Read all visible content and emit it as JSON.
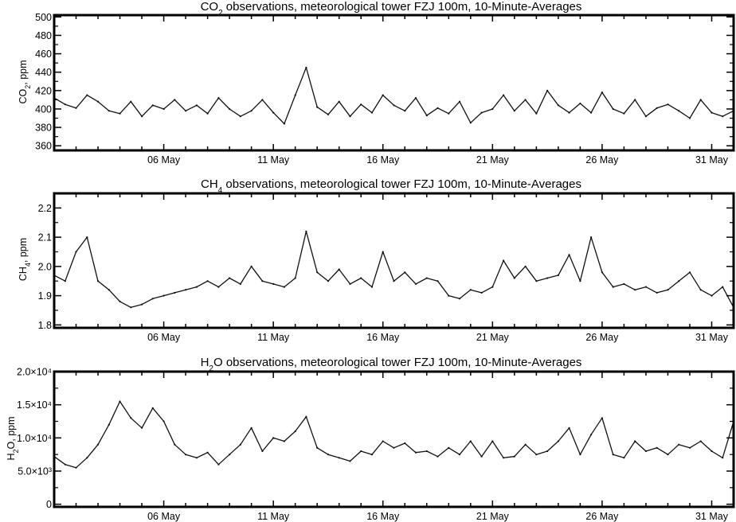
{
  "charts": [
    {
      "title_main": "CO",
      "title_sub": "2",
      "title_rest": " observations, meteorological tower FZJ 100m, 10-Minute-Averages",
      "ylabel_main": "CO",
      "ylabel_sub": "2",
      "ylabel_rest": ", ppm"
    },
    {
      "title_main": "CH",
      "title_sub": "4",
      "title_rest": " observations, meteorological tower FZJ 100m, 10-Minute-Averages",
      "ylabel_main": "CH",
      "ylabel_sub": "4",
      "ylabel_rest": ", ppm"
    },
    {
      "title_main": "H",
      "title_sub": "2",
      "title_rest": "O observations, meteorological tower FZJ 100m, 10-Minute-Averages",
      "ylabel_main": "H",
      "ylabel_sub": "2",
      "ylabel_rest": "O, ppm"
    }
  ],
  "chart_data": [
    {
      "type": "line",
      "title": "CO2 observations, meteorological tower FZJ 100m, 10-Minute-Averages",
      "ylabel": "CO2, ppm",
      "xlim": [
        1,
        32
      ],
      "ylim": [
        355,
        502
      ],
      "x_ticks": [
        6,
        11,
        16,
        21,
        26,
        31
      ],
      "x_tick_labels": [
        "06 May",
        "11 May",
        "16 May",
        "21 May",
        "26 May",
        "31 May"
      ],
      "y_ticks": [
        360,
        380,
        400,
        420,
        440,
        460,
        480,
        500
      ],
      "y_tick_labels": [
        "360",
        "380",
        "400",
        "420",
        "440",
        "460",
        "480",
        "500"
      ],
      "grid": false,
      "series_color": "#111111",
      "x": [
        1,
        1.5,
        2,
        2.5,
        3,
        3.5,
        4,
        4.5,
        5,
        5.5,
        6,
        6.5,
        7,
        7.5,
        8,
        8.5,
        9,
        9.5,
        10,
        10.5,
        11,
        11.5,
        12,
        12.5,
        13,
        13.5,
        14,
        14.5,
        15,
        15.5,
        16,
        16.5,
        17,
        17.5,
        18,
        18.5,
        19,
        19.5,
        20,
        20.5,
        21,
        21.5,
        22,
        22.5,
        23,
        23.5,
        24,
        24.5,
        25,
        25.5,
        26,
        26.5,
        27,
        27.5,
        28,
        28.5,
        29,
        29.5,
        30,
        30.5,
        31,
        31.5,
        32
      ],
      "y": [
        412,
        405,
        401,
        415,
        408,
        398,
        395,
        408,
        392,
        404,
        400,
        410,
        398,
        404,
        395,
        412,
        400,
        392,
        398,
        410,
        396,
        384,
        415,
        445,
        402,
        394,
        408,
        392,
        405,
        396,
        415,
        404,
        398,
        412,
        393,
        401,
        395,
        408,
        385,
        396,
        400,
        415,
        398,
        410,
        395,
        420,
        404,
        396,
        406,
        396,
        418,
        400,
        395,
        410,
        392,
        401,
        405,
        398,
        390,
        410,
        396,
        392,
        398
      ]
    },
    {
      "type": "line",
      "title": "CH4 observations, meteorological tower FZJ 100m, 10-Minute-Averages",
      "ylabel": "CH4, ppm",
      "xlim": [
        1,
        32
      ],
      "ylim": [
        1.79,
        2.25
      ],
      "x_ticks": [
        6,
        11,
        16,
        21,
        26,
        31
      ],
      "x_tick_labels": [
        "06 May",
        "11 May",
        "16 May",
        "21 May",
        "26 May",
        "31 May"
      ],
      "y_ticks": [
        1.8,
        1.9,
        2.0,
        2.1,
        2.2
      ],
      "y_tick_labels": [
        "1.8",
        "1.9",
        "2.0",
        "2.1",
        "2.2"
      ],
      "grid": false,
      "series_color": "#111111",
      "x": [
        1,
        1.5,
        2,
        2.5,
        3,
        3.5,
        4,
        4.5,
        5,
        5.5,
        6,
        6.5,
        7,
        7.5,
        8,
        8.5,
        9,
        9.5,
        10,
        10.5,
        11,
        11.5,
        12,
        12.5,
        13,
        13.5,
        14,
        14.5,
        15,
        15.5,
        16,
        16.5,
        17,
        17.5,
        18,
        18.5,
        19,
        19.5,
        20,
        20.5,
        21,
        21.5,
        22,
        22.5,
        23,
        23.5,
        24,
        24.5,
        25,
        25.5,
        26,
        26.5,
        27,
        27.5,
        28,
        28.5,
        29,
        29.5,
        30,
        30.5,
        31,
        31.5,
        32
      ],
      "y": [
        1.97,
        1.95,
        2.05,
        2.1,
        1.95,
        1.92,
        1.88,
        1.86,
        1.87,
        1.89,
        1.9,
        1.91,
        1.92,
        1.93,
        1.95,
        1.93,
        1.96,
        1.94,
        2.0,
        1.95,
        1.94,
        1.93,
        1.96,
        2.12,
        1.98,
        1.95,
        1.99,
        1.94,
        1.96,
        1.93,
        2.05,
        1.95,
        1.98,
        1.94,
        1.96,
        1.95,
        1.9,
        1.89,
        1.92,
        1.91,
        1.93,
        2.02,
        1.96,
        2.0,
        1.95,
        1.96,
        1.97,
        2.04,
        1.95,
        2.1,
        1.98,
        1.93,
        1.94,
        1.92,
        1.93,
        1.91,
        1.92,
        1.95,
        1.98,
        1.92,
        1.9,
        1.93,
        1.86
      ]
    },
    {
      "type": "line",
      "title": "H2O observations, meteorological tower FZJ 100m, 10-Minute-Averages",
      "ylabel": "H2O, ppm",
      "xlim": [
        1,
        32
      ],
      "ylim": [
        -400,
        20000
      ],
      "x_ticks": [
        6,
        11,
        16,
        21,
        26,
        31
      ],
      "x_tick_labels": [
        "06 May",
        "11 May",
        "16 May",
        "21 May",
        "26 May",
        "31 May"
      ],
      "y_ticks": [
        0,
        5000,
        10000,
        15000,
        20000
      ],
      "y_tick_labels": [
        "0",
        "5.0×10³",
        "1.0×10⁴",
        "1.5×10⁴",
        "2.0×10⁴"
      ],
      "grid": false,
      "series_color": "#111111",
      "x": [
        1,
        1.5,
        2,
        2.5,
        3,
        3.5,
        4,
        4.5,
        5,
        5.5,
        6,
        6.5,
        7,
        7.5,
        8,
        8.5,
        9,
        9.5,
        10,
        10.5,
        11,
        11.5,
        12,
        12.5,
        13,
        13.5,
        14,
        14.5,
        15,
        15.5,
        16,
        16.5,
        17,
        17.5,
        18,
        18.5,
        19,
        19.5,
        20,
        20.5,
        21,
        21.5,
        22,
        22.5,
        23,
        23.5,
        24,
        24.5,
        25,
        25.5,
        26,
        26.5,
        27,
        27.5,
        28,
        28.5,
        29,
        29.5,
        30,
        30.5,
        31,
        31.5,
        32
      ],
      "y": [
        7200,
        6000,
        5500,
        7000,
        9000,
        12000,
        15500,
        13000,
        11500,
        14500,
        12500,
        9000,
        7500,
        7000,
        7800,
        6000,
        7500,
        9000,
        11500,
        8000,
        10000,
        9500,
        11000,
        13200,
        8500,
        7500,
        7000,
        6500,
        8000,
        7500,
        9500,
        8500,
        9200,
        7800,
        8000,
        7200,
        8500,
        7500,
        9500,
        7200,
        9500,
        7000,
        7200,
        9000,
        7500,
        8000,
        9500,
        11500,
        7500,
        10500,
        13000,
        7500,
        7000,
        9500,
        8000,
        8500,
        7500,
        9000,
        8500,
        9500,
        8000,
        7000,
        12500
      ]
    }
  ]
}
